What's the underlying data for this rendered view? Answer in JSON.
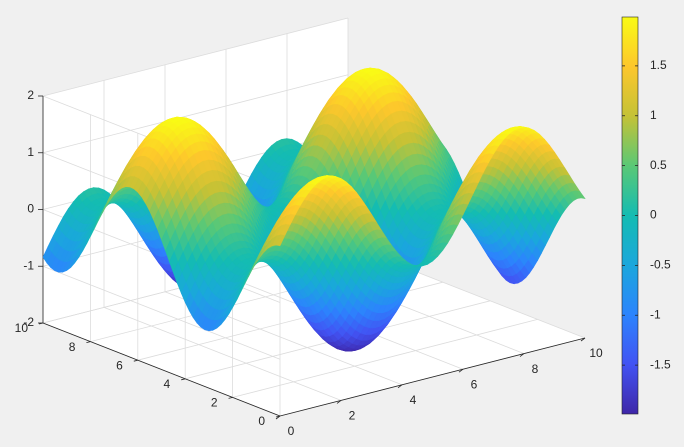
{
  "chart_data": {
    "type": "surface",
    "title": "",
    "xlabel": "",
    "ylabel": "",
    "zlabel": "",
    "function": "z = sin(x) + cos(y)",
    "x_range": [
      0,
      10
    ],
    "y_range": [
      0,
      10
    ],
    "z_range": [
      -2,
      2
    ],
    "x_ticks": [
      "0",
      "2",
      "4",
      "6",
      "8",
      "10"
    ],
    "y_ticks": [
      "0",
      "2",
      "4",
      "6",
      "8",
      "10"
    ],
    "z_ticks": [
      "-2",
      "-1",
      "0",
      "1",
      "2"
    ],
    "grid": true,
    "colormap": "parula",
    "colorbar": {
      "range": [
        -1.99,
        1.99
      ],
      "ticks": [
        "-1.5",
        "-1",
        "-0.5",
        "0",
        "0.5",
        "1",
        "1.5"
      ],
      "placement": "right"
    }
  }
}
